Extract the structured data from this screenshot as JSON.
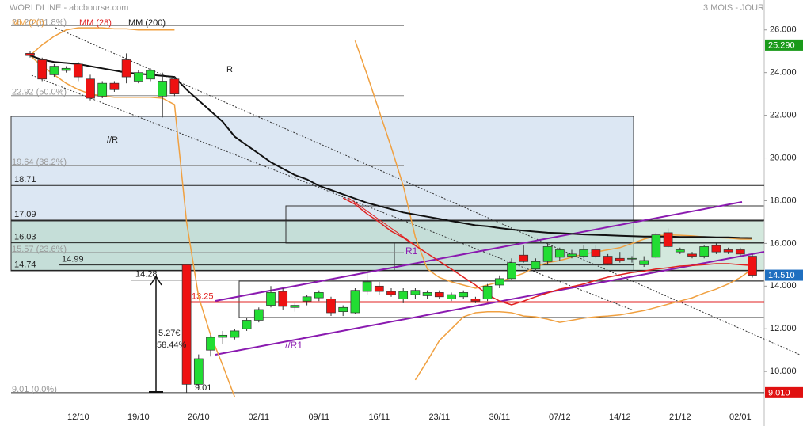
{
  "header": {
    "title": "WORLDLINE - abcbourse.com",
    "period": "3 MOIS - JOUR"
  },
  "chart_data": {
    "type": "candlestick",
    "categories": [
      null,
      null,
      null,
      null,
      "12/10",
      null,
      null,
      null,
      null,
      "19/10",
      null,
      null,
      null,
      null,
      "26/10",
      null,
      null,
      null,
      null,
      "02/11",
      null,
      null,
      null,
      null,
      "09/11",
      null,
      null,
      null,
      null,
      "16/11",
      null,
      null,
      null,
      null,
      "23/11",
      null,
      null,
      null,
      null,
      "30/11",
      null,
      null,
      null,
      null,
      "07/12",
      null,
      null,
      null,
      null,
      "14/12",
      null,
      null,
      null,
      null,
      "21/12",
      null,
      null,
      null,
      null,
      "02/01",
      null
    ],
    "open": [
      24.9,
      24.6,
      23.9,
      24.1,
      24.4,
      23.7,
      22.9,
      23.5,
      24.6,
      23.6,
      23.7,
      22.9,
      23.7,
      15.0,
      9.4,
      11.0,
      11.6,
      11.6,
      12.0,
      12.4,
      13.1,
      13.75,
      13.0,
      13.3,
      13.45,
      13.4,
      12.8,
      12.75,
      13.75,
      14.0,
      13.75,
      13.4,
      13.6,
      13.55,
      13.7,
      13.4,
      13.5,
      13.4,
      13.4,
      14.05,
      14.35,
      15.45,
      14.8,
      15.15,
      15.35,
      15.4,
      15.4,
      15.7,
      15.4,
      15.3,
      15.3,
      15.0,
      15.35,
      16.5,
      15.6,
      15.5,
      15.4,
      15.9,
      15.7,
      15.7,
      15.4
    ],
    "high": [
      25.0,
      24.7,
      24.4,
      24.3,
      24.5,
      23.9,
      23.6,
      23.6,
      24.9,
      24.1,
      24.2,
      24.0,
      23.8,
      15.0,
      10.8,
      11.7,
      11.9,
      12.0,
      12.5,
      13.0,
      14.0,
      13.9,
      13.2,
      13.6,
      13.8,
      13.5,
      13.1,
      13.9,
      14.7,
      14.2,
      13.9,
      13.9,
      13.9,
      13.8,
      13.8,
      13.7,
      13.8,
      13.5,
      14.1,
      14.5,
      15.3,
      15.9,
      15.3,
      16.0,
      15.8,
      15.7,
      15.9,
      15.9,
      15.5,
      15.6,
      15.4,
      15.4,
      16.5,
      16.7,
      15.8,
      15.6,
      15.9,
      16.0,
      15.8,
      15.8,
      15.5
    ],
    "low": [
      24.7,
      23.6,
      23.8,
      24.0,
      23.6,
      22.7,
      22.8,
      23.1,
      23.5,
      23.5,
      23.6,
      21.9,
      22.9,
      9.01,
      9.2,
      10.7,
      11.3,
      11.5,
      11.9,
      12.3,
      13.0,
      12.9,
      12.8,
      13.1,
      13.3,
      12.6,
      12.6,
      12.7,
      13.6,
      13.6,
      13.5,
      13.2,
      13.4,
      13.4,
      13.4,
      13.3,
      13.4,
      13.2,
      13.3,
      13.9,
      14.3,
      15.1,
      14.7,
      15.0,
      15.2,
      15.3,
      15.3,
      15.3,
      15.0,
      15.1,
      15.1,
      14.9,
      15.3,
      15.8,
      15.5,
      15.3,
      15.3,
      15.5,
      15.5,
      15.4,
      14.4
    ],
    "close": [
      24.8,
      23.7,
      24.3,
      24.2,
      23.8,
      22.8,
      23.5,
      23.2,
      23.8,
      24.0,
      24.1,
      23.6,
      23.0,
      9.4,
      10.6,
      11.6,
      11.7,
      11.9,
      12.4,
      12.9,
      13.7,
      13.05,
      13.1,
      13.5,
      13.7,
      12.75,
      13.0,
      13.8,
      14.2,
      13.75,
      13.6,
      13.75,
      13.8,
      13.7,
      13.5,
      13.6,
      13.7,
      13.3,
      14.0,
      14.35,
      15.1,
      15.15,
      15.15,
      15.85,
      15.7,
      15.5,
      15.7,
      15.4,
      15.05,
      15.2,
      15.3,
      15.2,
      16.4,
      15.85,
      15.7,
      15.4,
      15.85,
      15.6,
      15.6,
      15.5,
      14.51
    ],
    "up_color": "#22dd33",
    "down_color": "#ee1111",
    "series": [
      {
        "name": "MM (20)",
        "color": "#f0a040",
        "values": [
          24.8,
          25.3,
          25.7,
          26.0,
          26.1,
          26.1,
          26.1,
          26.05,
          26.05,
          26.0,
          26.0,
          26.0,
          26.0,
          null,
          null,
          null,
          null,
          null,
          null,
          null,
          null,
          null,
          null,
          null,
          null,
          null,
          null,
          25.5,
          23.9,
          22.2,
          20.5,
          18.7,
          16.3,
          14.8,
          14.4,
          14.2,
          14.05,
          13.9,
          14.05,
          14.2,
          14.4,
          14.6,
          14.9,
          15.1,
          15.2,
          15.35,
          15.5,
          15.6,
          15.7,
          15.8,
          16.0,
          16.2,
          16.35,
          16.4,
          16.38,
          16.35,
          16.3,
          16.27,
          16.25,
          16.2,
          16.2
        ],
        "lower": [
          24.8,
          24.3,
          23.9,
          23.5,
          23.2,
          23.0,
          22.9,
          22.85,
          22.85,
          22.85,
          22.85,
          22.8,
          22.5,
          17.0,
          13.5,
          11.7,
          10.3,
          8.8,
          null,
          null,
          null,
          null,
          null,
          null,
          null,
          null,
          null,
          null,
          null,
          null,
          null,
          null,
          9.6,
          10.5,
          11.45,
          12.0,
          12.56,
          12.75,
          12.8,
          12.8,
          12.75,
          12.6,
          12.56,
          12.45,
          12.3,
          12.4,
          12.5,
          12.56,
          12.6,
          12.65,
          12.75,
          12.85,
          13.0,
          13.15,
          13.3,
          13.45,
          13.67,
          13.86,
          14.1,
          14.4,
          14.8
        ]
      },
      {
        "name": "MM (28)",
        "color": "#e02020",
        "values": [
          null,
          null,
          null,
          null,
          null,
          null,
          null,
          null,
          null,
          null,
          null,
          null,
          null,
          null,
          null,
          null,
          null,
          null,
          null,
          null,
          null,
          null,
          null,
          null,
          null,
          null,
          18.13,
          17.83,
          17.38,
          17.0,
          16.57,
          16.27,
          15.9,
          15.53,
          15.16,
          14.8,
          14.42,
          14.05,
          13.6,
          13.3,
          13.12,
          13.3,
          13.5,
          13.68,
          13.86,
          13.97,
          14.1,
          14.27,
          14.42,
          14.53,
          14.64,
          14.7,
          14.8,
          14.86,
          14.94,
          14.97,
          15.0,
          15.05,
          15.05,
          15.0,
          14.97
        ]
      },
      {
        "name": "MM (200)",
        "color": "#111111",
        "values": [
          24.8,
          24.6,
          24.5,
          24.45,
          24.4,
          24.3,
          24.2,
          24.1,
          24.0,
          23.95,
          23.9,
          23.85,
          23.8,
          23.2,
          22.7,
          22.2,
          21.7,
          21.0,
          20.6,
          20.2,
          19.8,
          19.5,
          19.2,
          19.0,
          18.7,
          18.5,
          18.3,
          18.1,
          17.9,
          17.75,
          17.6,
          17.45,
          17.35,
          17.25,
          17.15,
          17.05,
          16.95,
          16.85,
          16.8,
          16.72,
          16.65,
          16.6,
          16.55,
          16.5,
          16.48,
          16.45,
          16.42,
          16.4,
          16.38,
          16.36,
          16.34,
          16.32,
          16.32,
          16.32,
          16.3,
          16.3,
          16.3,
          16.28,
          16.28,
          16.26,
          16.25
        ]
      }
    ],
    "ylim": [
      8.3,
      27.4
    ],
    "yticks": [
      {
        "value": 10,
        "label": "10.000"
      },
      {
        "value": 12,
        "label": "12.000"
      },
      {
        "value": 14,
        "label": "14.000"
      },
      {
        "value": 16,
        "label": "16.000"
      },
      {
        "value": 18,
        "label": "18.000"
      },
      {
        "value": 20,
        "label": "20.000"
      },
      {
        "value": 22,
        "label": "22.000"
      },
      {
        "value": 24,
        "label": "24.000"
      },
      {
        "value": 26,
        "label": "26.000"
      }
    ],
    "fib_levels": [
      {
        "value": 26.2,
        "label": "26.20 (61.8%)"
      },
      {
        "value": 22.92,
        "label": "22.92 (50.0%)"
      },
      {
        "value": 19.64,
        "label": "19.64 (38.2%)"
      },
      {
        "value": 15.57,
        "label": "15.57 (23.6%)"
      },
      {
        "value": 9.01,
        "label": "9.01 (0.0%)"
      }
    ],
    "levels": [
      18.71,
      17.09,
      16.03,
      14.99,
      14.74,
      14.28,
      13.25
    ],
    "price_tags": [
      {
        "value": 25.29,
        "label": "25.290",
        "color": "#1a9a1a"
      },
      {
        "value": 14.51,
        "label": "14.510",
        "color": "#1f6fc0"
      },
      {
        "value": 9.01,
        "label": "9.010",
        "color": "#e01010"
      }
    ],
    "annotations": {
      "r": "R",
      "r_parallel": "//R",
      "r1": "R1",
      "r1_parallel": "//R1",
      "drop": "5.27€",
      "drop_pct": "58.44%",
      "low": "9.01"
    }
  }
}
